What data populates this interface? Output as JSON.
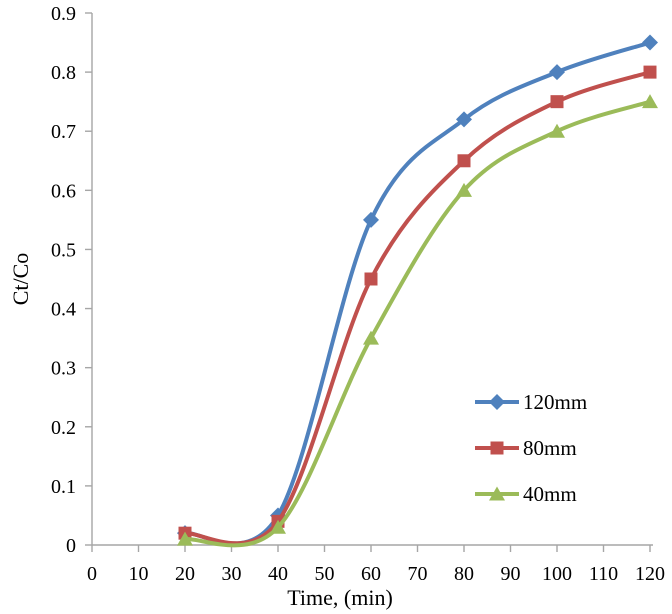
{
  "chart_data": {
    "type": "line",
    "smooth": true,
    "title": "",
    "xlabel": "Time, (min)",
    "ylabel": "Ct/Co",
    "xlim": [
      0,
      120
    ],
    "ylim": [
      0,
      0.9
    ],
    "x_ticks": [
      0,
      10,
      20,
      30,
      40,
      50,
      60,
      70,
      80,
      90,
      100,
      110,
      120
    ],
    "y_ticks": [
      {
        "label": "0",
        "value": 0
      },
      {
        "label": "0.1",
        "value": 0.1
      },
      {
        "label": "0.2",
        "value": 0.2
      },
      {
        "label": "0.3",
        "value": 0.3
      },
      {
        "label": "0.4",
        "value": 0.4
      },
      {
        "label": "0.5",
        "value": 0.5
      },
      {
        "label": "0.6",
        "value": 0.6
      },
      {
        "label": "0.7",
        "value": 0.7
      },
      {
        "label": "0.8",
        "value": 0.8
      },
      {
        "label": "0.9",
        "value": 0.9
      }
    ],
    "grid": false,
    "legend_position": "inside-right",
    "axis_color": "#A6A6A6",
    "text_color": "#000000",
    "x": [
      20,
      40,
      60,
      80,
      100,
      120
    ],
    "series": [
      {
        "name": "120mm",
        "marker": "diamond",
        "color": "#4F81BD",
        "values": [
          0.02,
          0.05,
          0.55,
          0.72,
          0.8,
          0.85
        ]
      },
      {
        "name": "80mm",
        "marker": "square",
        "color": "#C0504D",
        "values": [
          0.02,
          0.04,
          0.45,
          0.65,
          0.75,
          0.8
        ]
      },
      {
        "name": "40mm",
        "marker": "triangle",
        "color": "#9BBB59",
        "values": [
          0.01,
          0.03,
          0.35,
          0.6,
          0.7,
          0.75
        ]
      }
    ]
  }
}
